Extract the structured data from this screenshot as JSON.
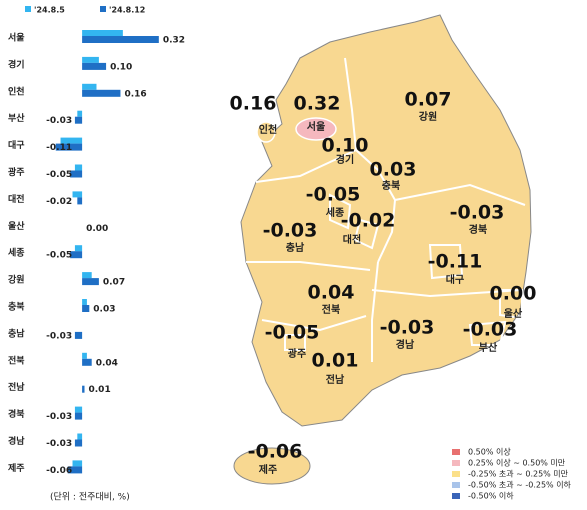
{
  "chart_data": {
    "type": "hbar",
    "categories": [
      "서울",
      "경기",
      "인천",
      "부산",
      "대구",
      "광주",
      "대전",
      "울산",
      "세종",
      "강원",
      "충북",
      "충남",
      "전북",
      "전남",
      "경북",
      "경남",
      "제주"
    ],
    "series": [
      {
        "name": "'24.8.5",
        "color": "#33b5f0",
        "values": [
          0.17,
          0.07,
          0.06,
          -0.02,
          -0.09,
          -0.03,
          -0.04,
          0,
          -0.03,
          0.04,
          0.02,
          0,
          0.02,
          0,
          -0.03,
          -0.02,
          -0.04
        ]
      },
      {
        "name": "'24.8.12",
        "color": "#1f6fc5",
        "values": [
          0.32,
          0.1,
          0.16,
          -0.03,
          -0.11,
          -0.05,
          -0.02,
          0,
          -0.05,
          0.07,
          0.03,
          -0.03,
          0.04,
          0.01,
          -0.03,
          -0.03,
          -0.06
        ],
        "value_labels": [
          "0.32",
          "0.10",
          "0.16",
          "-0.03",
          "-0.11",
          "-0.05",
          "-0.02",
          "0.00",
          "-0.05",
          "0.07",
          "0.03",
          "-0.03",
          "0.04",
          "0.01",
          "-0.03",
          "-0.03",
          "-0.06"
        ]
      }
    ],
    "xlim": [
      -0.33,
      0.4
    ],
    "note": "(단위 : 전주대비, %)"
  },
  "map": {
    "regions": [
      {
        "name": "인천",
        "value": "0.16"
      },
      {
        "name": "서울",
        "value": "0.32"
      },
      {
        "name": "강원",
        "value": "0.07"
      },
      {
        "name": "경기",
        "value": "0.10"
      },
      {
        "name": "충북",
        "value": "0.03"
      },
      {
        "name": "세종",
        "value": "-0.05"
      },
      {
        "name": "대전",
        "value": "-0.02"
      },
      {
        "name": "충남",
        "value": "-0.03"
      },
      {
        "name": "경북",
        "value": "-0.03"
      },
      {
        "name": "대구",
        "value": "-0.11"
      },
      {
        "name": "울산",
        "value": "0.00"
      },
      {
        "name": "전북",
        "value": "0.04"
      },
      {
        "name": "광주",
        "value": "-0.05"
      },
      {
        "name": "경남",
        "value": "-0.03"
      },
      {
        "name": "부산",
        "value": "-0.03"
      },
      {
        "name": "전남",
        "value": "0.01"
      },
      {
        "name": "제주",
        "value": "-0.06"
      }
    ],
    "legend": [
      {
        "label": "0.50% 이상",
        "color": "#e8706f"
      },
      {
        "label": "0.25% 이상 ~ 0.50% 미만",
        "color": "#f5b8be"
      },
      {
        "label": "-0.25% 초과 ~ 0.25% 미만",
        "color": "#fbe08a"
      },
      {
        "label": "-0.50% 초과 ~ -0.25% 이하",
        "color": "#a9c4ea"
      },
      {
        "label": "-0.50% 이하",
        "color": "#3a64b8"
      }
    ]
  }
}
